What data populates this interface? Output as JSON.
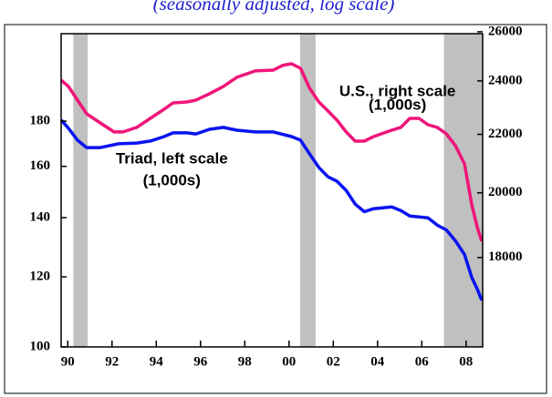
{
  "chart_data": {
    "type": "line",
    "subtitle": "(seasonally adjusted, log scale)",
    "ylog": true,
    "y2log": true,
    "xlim": [
      1989.7,
      2008.75
    ],
    "xticks": [
      {
        "value": 1990,
        "label": "90"
      },
      {
        "value": 1992,
        "label": "92"
      },
      {
        "value": 1994,
        "label": "94"
      },
      {
        "value": 1996,
        "label": "96"
      },
      {
        "value": 1998,
        "label": "98"
      },
      {
        "value": 2000,
        "label": "00"
      },
      {
        "value": 2002,
        "label": "02"
      },
      {
        "value": 2004,
        "label": "04"
      },
      {
        "value": 2006,
        "label": "06"
      },
      {
        "value": 2008,
        "label": "08"
      }
    ],
    "ylim": [
      100,
      226
    ],
    "yticks": [
      100,
      120,
      140,
      160,
      180
    ],
    "y2lim": [
      15560,
      25920
    ],
    "y2ticks": [
      18000,
      20000,
      22000,
      24000,
      26000
    ],
    "recessions": [
      [
        1990.25,
        1990.9
      ],
      [
        2000.5,
        2001.2
      ],
      [
        2007.0,
        2008.75
      ]
    ],
    "recession_color": "#c0c0c0",
    "series": [
      {
        "color": "#0a14f0",
        "axis": "y",
        "x": [
          1989.7,
          1990.03,
          1990.44,
          1990.85,
          1991.47,
          1992.29,
          1993.12,
          1993.73,
          1994.35,
          1994.76,
          1995.38,
          1995.79,
          1996.41,
          1997.03,
          1997.64,
          1998.47,
          1999.29,
          2000.11,
          2000.52,
          2000.93,
          2001.35,
          2001.76,
          2002.17,
          2002.58,
          2002.99,
          2003.4,
          2003.82,
          2004.64,
          2005.05,
          2005.46,
          2006.28,
          2006.7,
          2007.11,
          2007.52,
          2007.93,
          2008.26,
          2008.51,
          2008.71
        ],
        "values": [
          180.5,
          176.7,
          171.3,
          168,
          168,
          169.7,
          170,
          170.9,
          172.9,
          174.6,
          174.6,
          174.1,
          176.2,
          177.1,
          175.8,
          175,
          175,
          172.9,
          171.3,
          165.3,
          159.5,
          155.7,
          153.9,
          150.3,
          145,
          142.2,
          143.3,
          144,
          142.6,
          140.6,
          139.9,
          137.3,
          135.6,
          131.8,
          127.2,
          119.8,
          116.2,
          112.9
        ]
      },
      {
        "color": "#f0147a",
        "axis": "y2",
        "x": [
          1989.7,
          1990.03,
          1990.44,
          1990.85,
          1991.47,
          1992.09,
          1992.5,
          1993.12,
          1993.73,
          1994.35,
          1994.76,
          1995.38,
          1995.79,
          1996.41,
          1997.03,
          1997.64,
          1998.47,
          1999.29,
          1999.7,
          2000.11,
          2000.52,
          2000.93,
          2001.35,
          2001.76,
          2002.17,
          2002.58,
          2002.99,
          2003.4,
          2003.82,
          2004.64,
          2005.05,
          2005.46,
          2005.87,
          2006.28,
          2006.7,
          2007.11,
          2007.52,
          2007.93,
          2008.26,
          2008.51,
          2008.71
        ],
        "values": [
          24032,
          23785,
          23262,
          22750,
          22414,
          22085,
          22085,
          22249,
          22581,
          22918,
          23158,
          23192,
          23262,
          23505,
          23785,
          24141,
          24394,
          24428,
          24611,
          24683,
          24501,
          23715,
          23192,
          22852,
          22514,
          22085,
          21759,
          21759,
          21921,
          22150,
          22249,
          22581,
          22581,
          22347,
          22249,
          22019,
          21597,
          20967,
          19613,
          18899,
          18482
        ]
      }
    ],
    "annotations": [
      {
        "text": "U.S., right scale",
        "x": 2004.9,
        "y2": 23580
      },
      {
        "text": "(1,000s)",
        "x": 2004.9,
        "y2": 23050
      },
      {
        "text": "Triad, left scale",
        "x": 1994.7,
        "y": 163
      },
      {
        "text": "(1,000s)",
        "x": 1994.7,
        "y": 154
      }
    ]
  }
}
